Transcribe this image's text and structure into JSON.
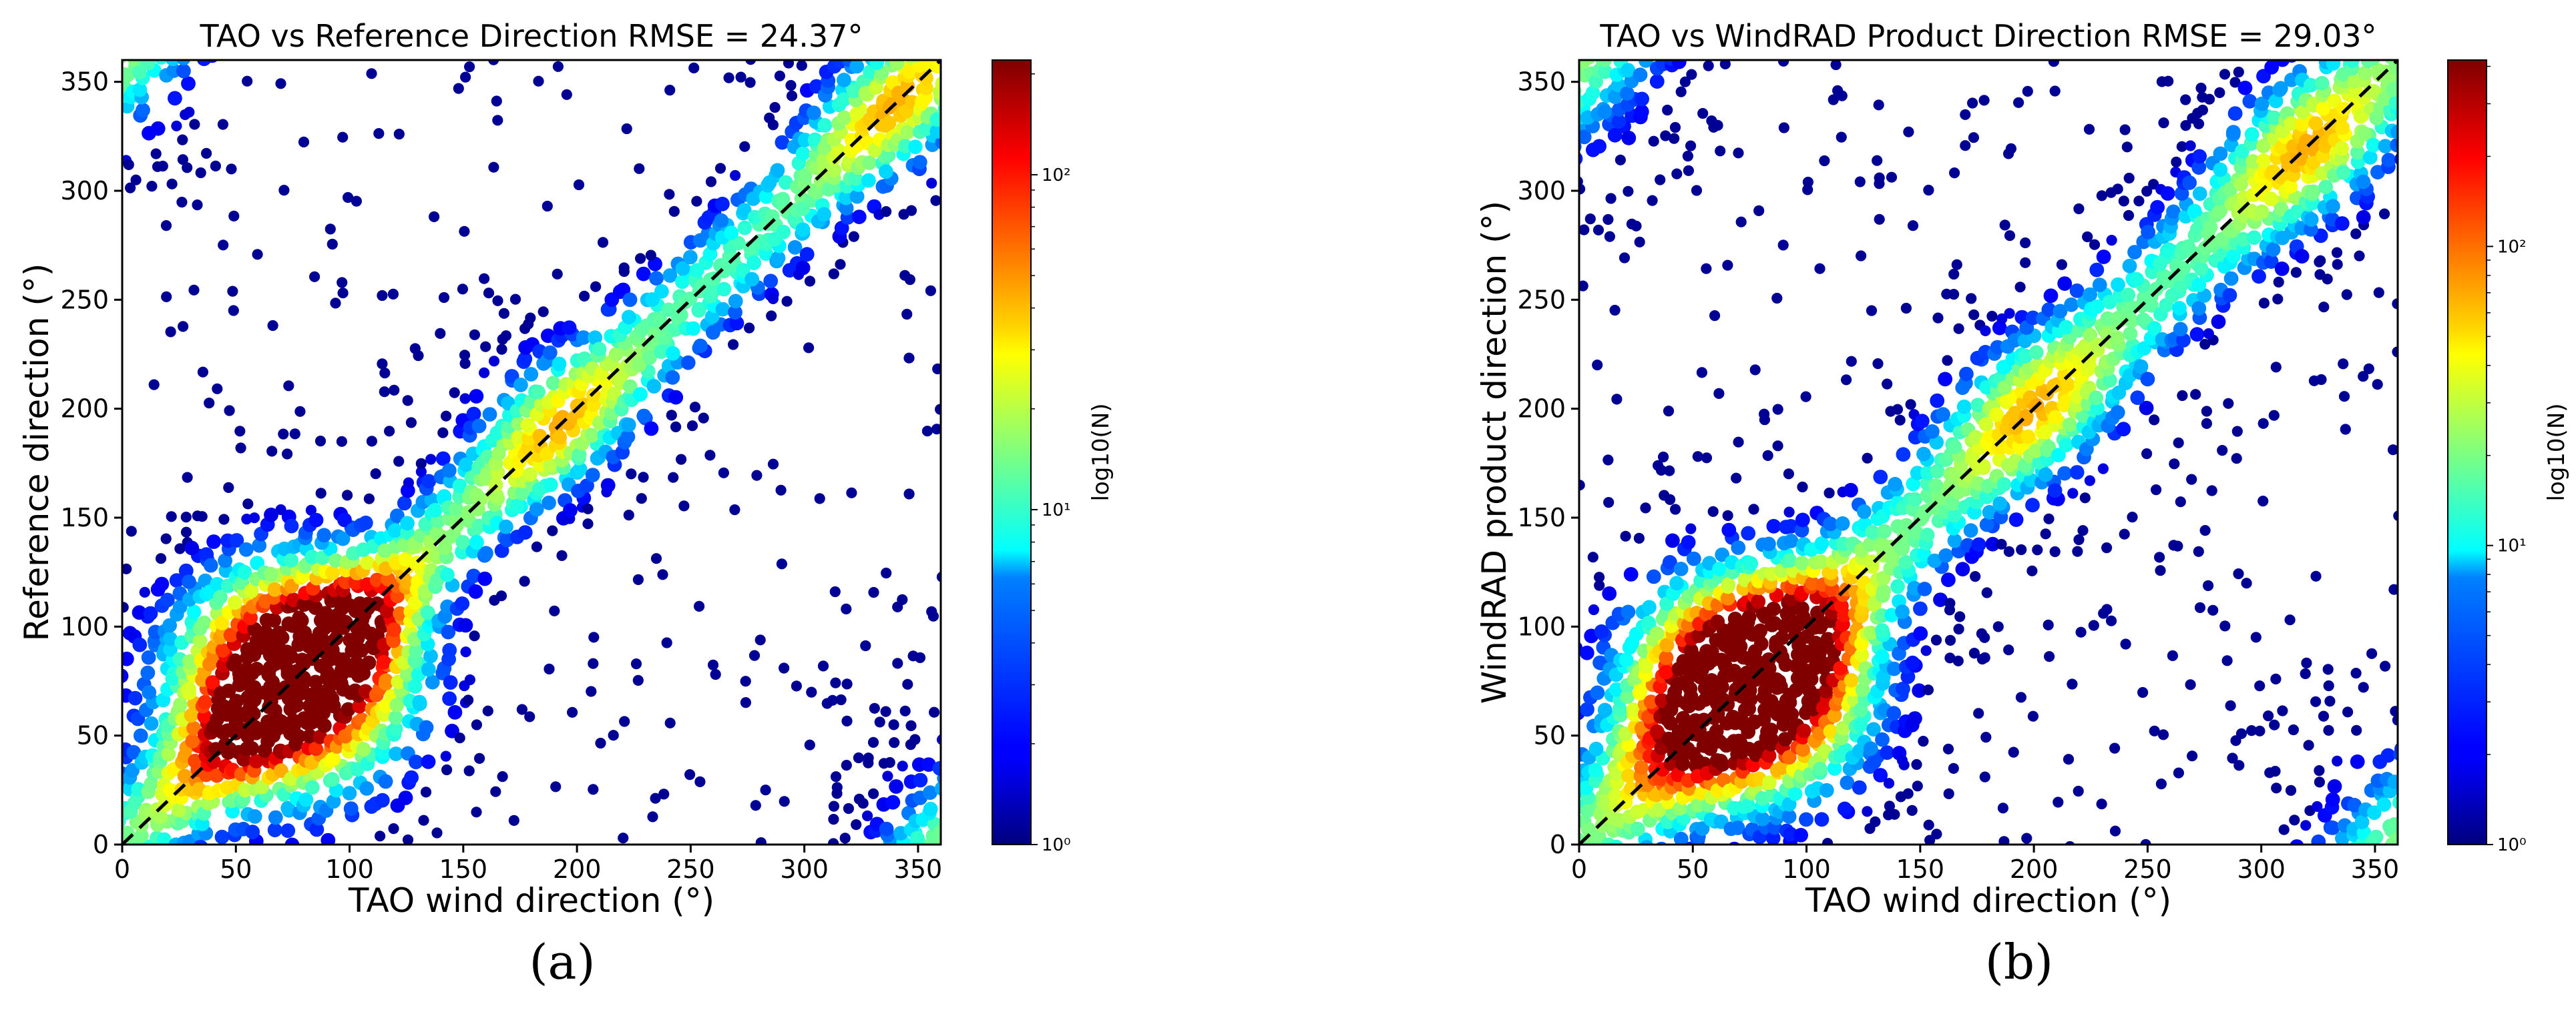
{
  "figure": {
    "panels": [
      {
        "caption_label": "(a)"
      },
      {
        "caption_label": "(b)"
      }
    ]
  },
  "chart_data": [
    {
      "type": "heatmap",
      "subtype": "hexbin scatter density",
      "title": "TAO vs Reference Direction RMSE = 24.37°",
      "xlabel": "TAO wind direction (°)",
      "ylabel": "Reference direction (°)",
      "xlim": [
        0,
        360
      ],
      "ylim": [
        0,
        360
      ],
      "xticks": [
        0,
        50,
        100,
        150,
        200,
        250,
        300,
        350
      ],
      "yticks": [
        0,
        50,
        100,
        150,
        200,
        250,
        300,
        350
      ],
      "rmse_deg": 24.37,
      "reference_line": {
        "type": "y = x",
        "style": "dashed",
        "color": "#000000"
      },
      "colorbar": {
        "label": "log10(N)",
        "scale": "log",
        "colormap": "jet",
        "min": 1,
        "max": 220,
        "tick_labels": [
          "10⁰",
          "10¹",
          "10²"
        ],
        "tick_values": [
          1,
          10,
          100
        ]
      },
      "density_peak": {
        "x": 72,
        "y": 72,
        "count": 220
      },
      "description_clusters": [
        {
          "x": 85,
          "y": 90,
          "level": "high"
        },
        {
          "x": 190,
          "y": 195,
          "level": "medium"
        },
        {
          "x": 340,
          "y": 340,
          "level": "medium"
        },
        {
          "x": 340,
          "y": 40,
          "level": "low"
        },
        {
          "x": 20,
          "y": 330,
          "level": "low"
        }
      ],
      "grid": false
    },
    {
      "type": "heatmap",
      "subtype": "hexbin scatter density",
      "title": "TAO vs WindRAD Product Direction RMSE = 29.03°",
      "xlabel": "TAO wind direction (°)",
      "ylabel": "WindRAD product direction (°)",
      "xlim": [
        0,
        360
      ],
      "ylim": [
        0,
        360
      ],
      "xticks": [
        0,
        50,
        100,
        150,
        200,
        250,
        300,
        350
      ],
      "yticks": [
        0,
        50,
        100,
        150,
        200,
        250,
        300,
        350
      ],
      "rmse_deg": 29.03,
      "reference_line": {
        "type": "y = x",
        "style": "dashed",
        "color": "#000000"
      },
      "colorbar": {
        "label": "log10(N)",
        "scale": "log",
        "colormap": "jet",
        "min": 1,
        "max": 420,
        "tick_labels": [
          "10⁰",
          "10¹",
          "10²"
        ],
        "tick_values": [
          1,
          10,
          100
        ]
      },
      "density_peak": {
        "x": 72,
        "y": 70,
        "count": 420
      },
      "description_clusters": [
        {
          "x": 80,
          "y": 80,
          "level": "high"
        },
        {
          "x": 200,
          "y": 200,
          "level": "medium"
        },
        {
          "x": 320,
          "y": 320,
          "level": "medium"
        },
        {
          "x": 340,
          "y": 40,
          "level": "low"
        },
        {
          "x": 20,
          "y": 330,
          "level": "low"
        }
      ],
      "grid": false
    }
  ]
}
